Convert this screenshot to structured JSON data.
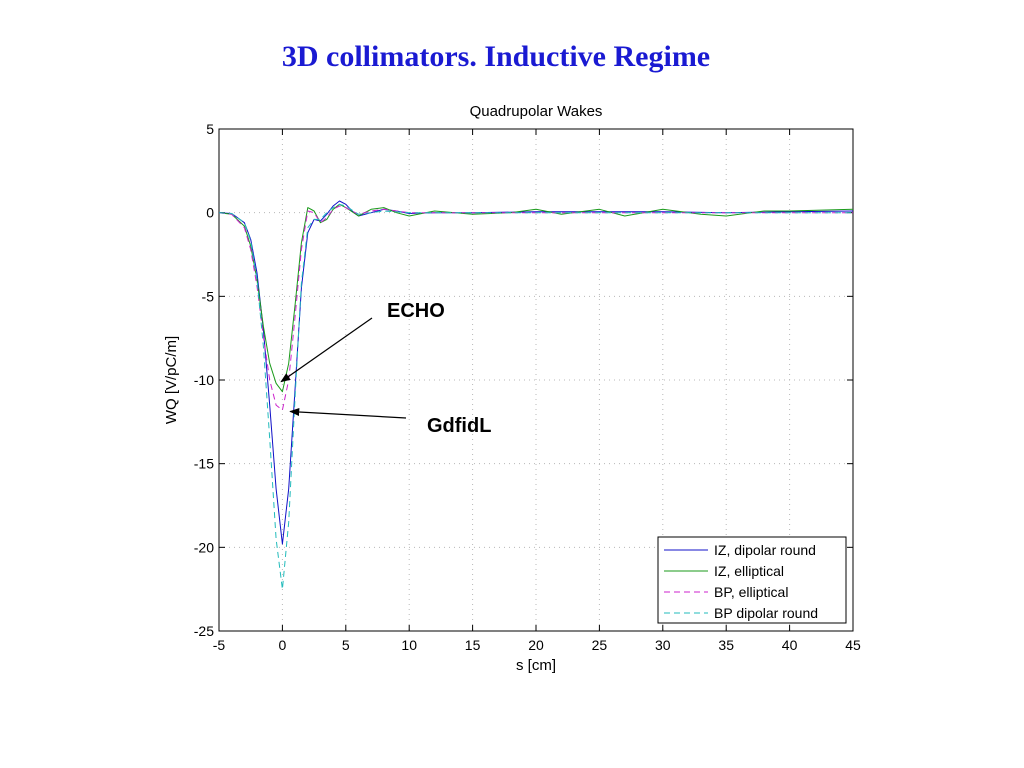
{
  "slide": {
    "title": "3D collimators. Inductive Regime"
  },
  "chart_data": {
    "type": "line",
    "title": "Quadrupolar Wakes",
    "xlabel": "s [cm]",
    "ylabel": "WQ [V/pC/m]",
    "xlim": [
      -5,
      45
    ],
    "ylim": [
      -25,
      5
    ],
    "xticks": [
      -5,
      0,
      5,
      10,
      15,
      20,
      25,
      30,
      35,
      40,
      45
    ],
    "yticks": [
      5,
      0,
      -5,
      -10,
      -15,
      -20,
      -25
    ],
    "grid": true,
    "legend_position": "bottom-right",
    "series": [
      {
        "name": "IZ, dipolar round",
        "color": "#1010c8",
        "dash": "solid",
        "x": [
          -5,
          -4,
          -3,
          -2.5,
          -2,
          -1.5,
          -1,
          -0.5,
          0,
          0.5,
          1,
          1.5,
          2,
          2.5,
          3,
          3.5,
          4,
          4.5,
          5,
          5.5,
          6,
          7,
          8,
          9,
          10,
          12,
          15,
          20,
          25,
          30,
          35,
          40,
          45
        ],
        "y": [
          0,
          -0.05,
          -0.6,
          -1.6,
          -3.6,
          -7.0,
          -11.5,
          -16.5,
          -19.8,
          -16.5,
          -10.5,
          -4.5,
          -1.2,
          -0.4,
          -0.5,
          -0.1,
          0.4,
          0.7,
          0.5,
          0.1,
          -0.2,
          0.0,
          0.2,
          0.1,
          -0.05,
          0.0,
          0.0,
          0.05,
          0.05,
          0.05,
          0.0,
          0.05,
          0.1
        ]
      },
      {
        "name": "IZ, elliptical",
        "color": "#1a9a1a",
        "dash": "solid",
        "x": [
          -5,
          -4,
          -3,
          -2.5,
          -2,
          -1.5,
          -1,
          -0.5,
          0,
          0.5,
          1,
          1.5,
          2,
          2.5,
          3,
          3.5,
          4,
          4.5,
          5,
          6,
          7,
          8,
          9,
          10,
          12,
          15,
          18,
          20,
          22,
          25,
          27,
          30,
          33,
          35,
          38,
          40,
          45
        ],
        "y": [
          0,
          -0.1,
          -0.8,
          -2.0,
          -4.0,
          -6.8,
          -9.0,
          -10.2,
          -10.7,
          -9.0,
          -5.5,
          -1.8,
          0.3,
          0.1,
          -0.6,
          -0.4,
          0.2,
          0.5,
          0.3,
          -0.2,
          0.2,
          0.3,
          0.0,
          -0.2,
          0.1,
          -0.1,
          0.0,
          0.2,
          -0.1,
          0.2,
          -0.2,
          0.2,
          -0.1,
          -0.2,
          0.1,
          0.1,
          0.2
        ]
      },
      {
        "name": "BP, elliptical",
        "color": "#cc22cc",
        "dash": "dashed",
        "x": [
          -5,
          -4,
          -3,
          -2.5,
          -2,
          -1.5,
          -1,
          -0.5,
          0,
          0.5,
          1,
          1.5,
          2,
          2.5,
          3,
          3.5,
          4,
          4.5,
          5,
          6,
          7,
          8,
          10,
          15,
          20,
          25,
          30,
          35,
          40,
          45
        ],
        "y": [
          0,
          -0.1,
          -0.9,
          -2.2,
          -4.4,
          -7.4,
          -10.0,
          -11.5,
          -11.8,
          -10.0,
          -6.2,
          -2.2,
          0.1,
          0.0,
          -0.6,
          -0.3,
          0.2,
          0.4,
          0.3,
          -0.1,
          0.1,
          0.2,
          0.0,
          0.0,
          0.0,
          0.0,
          0.0,
          0.0,
          0.0,
          0.0
        ]
      },
      {
        "name": "BP dipolar round",
        "color": "#22bbbb",
        "dash": "dashed",
        "x": [
          -5,
          -4,
          -3,
          -2.5,
          -2,
          -1.5,
          -1,
          -0.5,
          0,
          0.5,
          1,
          1.5,
          2,
          2.5,
          3,
          3.5,
          4,
          4.5,
          5,
          6,
          7,
          8,
          10,
          15,
          20,
          25,
          30,
          35,
          40,
          45
        ],
        "y": [
          0,
          -0.05,
          -0.6,
          -1.7,
          -4.0,
          -8.0,
          -13.5,
          -19.5,
          -22.5,
          -18.5,
          -11.0,
          -4.2,
          -0.9,
          -0.4,
          -0.4,
          0.0,
          0.3,
          0.5,
          0.4,
          -0.1,
          0.0,
          0.1,
          0.0,
          0.0,
          0.0,
          0.0,
          0.0,
          0.0,
          0.0,
          0.0
        ]
      }
    ],
    "annotations": [
      {
        "text": "ECHO",
        "target": {
          "x": -0.1,
          "y": -10.1
        }
      },
      {
        "text": "GdfidL",
        "target": {
          "x": 0.3,
          "y": -12.0
        }
      }
    ]
  }
}
